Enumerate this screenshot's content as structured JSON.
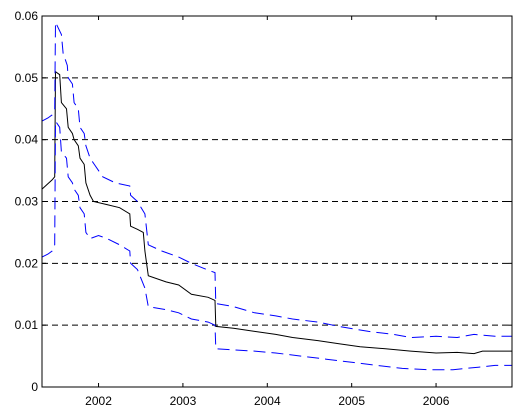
{
  "chart_data": {
    "type": "line",
    "title": "",
    "xlabel": "",
    "ylabel": "",
    "xlim": [
      2001.33,
      2006.9
    ],
    "ylim": [
      0,
      0.06
    ],
    "x_ticks": [
      {
        "value": 2002,
        "label": "2002"
      },
      {
        "value": 2003,
        "label": "2003"
      },
      {
        "value": 2004,
        "label": "2004"
      },
      {
        "value": 2005,
        "label": "2005"
      },
      {
        "value": 2006,
        "label": "2006"
      }
    ],
    "y_ticks": [
      {
        "value": 0,
        "label": "0"
      },
      {
        "value": 0.01,
        "label": "0.01"
      },
      {
        "value": 0.02,
        "label": "0.02"
      },
      {
        "value": 0.03,
        "label": "0.03"
      },
      {
        "value": 0.04,
        "label": "0.04"
      },
      {
        "value": 0.05,
        "label": "0.05"
      },
      {
        "value": 0.06,
        "label": "0.06"
      }
    ],
    "grid": {
      "horizontal": true,
      "vertical": false,
      "style": "dashed"
    },
    "series": [
      {
        "style": "solid",
        "color": "#000000",
        "points": [
          [
            2001.33,
            0.032
          ],
          [
            2001.45,
            0.0335
          ],
          [
            2001.48,
            0.034
          ],
          [
            2001.49,
            0.051
          ],
          [
            2001.54,
            0.0505
          ],
          [
            2001.56,
            0.046
          ],
          [
            2001.62,
            0.045
          ],
          [
            2001.64,
            0.042
          ],
          [
            2001.69,
            0.041
          ],
          [
            2001.71,
            0.04
          ],
          [
            2001.76,
            0.039
          ],
          [
            2001.78,
            0.037
          ],
          [
            2001.83,
            0.036
          ],
          [
            2001.85,
            0.033
          ],
          [
            2001.9,
            0.031
          ],
          [
            2001.94,
            0.03
          ],
          [
            2002.1,
            0.0295
          ],
          [
            2002.25,
            0.029
          ],
          [
            2002.37,
            0.028
          ],
          [
            2002.38,
            0.026
          ],
          [
            2002.46,
            0.0255
          ],
          [
            2002.53,
            0.025
          ],
          [
            2002.55,
            0.022
          ],
          [
            2002.59,
            0.018
          ],
          [
            2002.8,
            0.017
          ],
          [
            2002.95,
            0.0165
          ],
          [
            2003.1,
            0.015
          ],
          [
            2003.3,
            0.0145
          ],
          [
            2003.38,
            0.014
          ],
          [
            2003.39,
            0.0098
          ],
          [
            2003.6,
            0.0095
          ],
          [
            2003.85,
            0.009
          ],
          [
            2004.1,
            0.0085
          ],
          [
            2004.3,
            0.008
          ],
          [
            2004.6,
            0.0075
          ],
          [
            2004.85,
            0.007
          ],
          [
            2005.1,
            0.0065
          ],
          [
            2005.4,
            0.0062
          ],
          [
            2005.7,
            0.0058
          ],
          [
            2006.0,
            0.0055
          ],
          [
            2006.25,
            0.0056
          ],
          [
            2006.45,
            0.0054
          ],
          [
            2006.55,
            0.0058
          ],
          [
            2006.7,
            0.0058
          ],
          [
            2006.9,
            0.0058
          ]
        ]
      },
      {
        "style": "dashed",
        "color": "#0000ff",
        "points": [
          [
            2001.33,
            0.043
          ],
          [
            2001.4,
            0.0435
          ],
          [
            2001.45,
            0.044
          ],
          [
            2001.48,
            0.045
          ],
          [
            2001.49,
            0.059
          ],
          [
            2001.56,
            0.057
          ],
          [
            2001.58,
            0.054
          ],
          [
            2001.63,
            0.052
          ],
          [
            2001.64,
            0.05
          ],
          [
            2001.69,
            0.049
          ],
          [
            2001.71,
            0.046
          ],
          [
            2001.76,
            0.045
          ],
          [
            2001.78,
            0.042
          ],
          [
            2001.83,
            0.041
          ],
          [
            2001.85,
            0.039
          ],
          [
            2001.9,
            0.037
          ],
          [
            2001.95,
            0.036
          ],
          [
            2002.05,
            0.034
          ],
          [
            2002.2,
            0.033
          ],
          [
            2002.37,
            0.0325
          ],
          [
            2002.38,
            0.031
          ],
          [
            2002.46,
            0.03
          ],
          [
            2002.55,
            0.028
          ],
          [
            2002.59,
            0.023
          ],
          [
            2002.75,
            0.022
          ],
          [
            2002.95,
            0.021
          ],
          [
            2003.1,
            0.02
          ],
          [
            2003.28,
            0.019
          ],
          [
            2003.38,
            0.0185
          ],
          [
            2003.39,
            0.0135
          ],
          [
            2003.6,
            0.013
          ],
          [
            2003.85,
            0.012
          ],
          [
            2004.1,
            0.0115
          ],
          [
            2004.3,
            0.011
          ],
          [
            2004.6,
            0.0105
          ],
          [
            2004.85,
            0.0098
          ],
          [
            2005.2,
            0.009
          ],
          [
            2005.5,
            0.0085
          ],
          [
            2005.7,
            0.008
          ],
          [
            2006.0,
            0.0082
          ],
          [
            2006.25,
            0.008
          ],
          [
            2006.45,
            0.0085
          ],
          [
            2006.7,
            0.0082
          ],
          [
            2006.9,
            0.0082
          ]
        ]
      },
      {
        "style": "dashed",
        "color": "#0000ff",
        "points": [
          [
            2001.33,
            0.021
          ],
          [
            2001.4,
            0.0215
          ],
          [
            2001.45,
            0.022
          ],
          [
            2001.48,
            0.023
          ],
          [
            2001.49,
            0.043
          ],
          [
            2001.54,
            0.042
          ],
          [
            2001.56,
            0.038
          ],
          [
            2001.62,
            0.037
          ],
          [
            2001.64,
            0.034
          ],
          [
            2001.69,
            0.033
          ],
          [
            2001.71,
            0.032
          ],
          [
            2001.76,
            0.031
          ],
          [
            2001.78,
            0.029
          ],
          [
            2001.83,
            0.028
          ],
          [
            2001.85,
            0.025
          ],
          [
            2001.9,
            0.024
          ],
          [
            2002.0,
            0.0245
          ],
          [
            2002.1,
            0.024
          ],
          [
            2002.25,
            0.023
          ],
          [
            2002.37,
            0.022
          ],
          [
            2002.38,
            0.02
          ],
          [
            2002.46,
            0.019
          ],
          [
            2002.55,
            0.016
          ],
          [
            2002.59,
            0.013
          ],
          [
            2002.8,
            0.0125
          ],
          [
            2002.95,
            0.012
          ],
          [
            2003.1,
            0.011
          ],
          [
            2003.3,
            0.0105
          ],
          [
            2003.38,
            0.01
          ],
          [
            2003.39,
            0.0062
          ],
          [
            2003.6,
            0.006
          ],
          [
            2003.85,
            0.0058
          ],
          [
            2004.1,
            0.0055
          ],
          [
            2004.4,
            0.005
          ],
          [
            2004.7,
            0.0045
          ],
          [
            2005.0,
            0.004
          ],
          [
            2005.3,
            0.0035
          ],
          [
            2005.6,
            0.003
          ],
          [
            2005.9,
            0.0028
          ],
          [
            2006.2,
            0.0028
          ],
          [
            2006.5,
            0.0032
          ],
          [
            2006.7,
            0.0035
          ],
          [
            2006.9,
            0.0035
          ]
        ]
      }
    ]
  }
}
